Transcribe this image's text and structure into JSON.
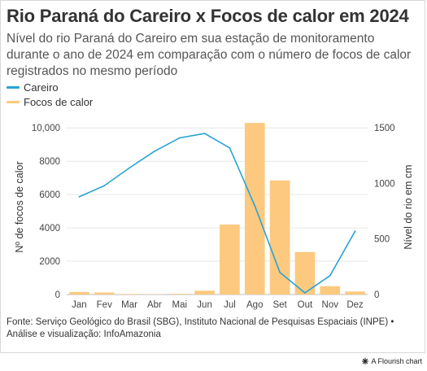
{
  "title": "Rio Paraná do Careiro x Focos de calor em 2024",
  "subtitle": "Nível do rio Paraná do Careiro em sua estação de monitoramento durante o ano de 2024 em comparação com o número de focos de calor registrados no mesmo período",
  "legend": [
    {
      "label": "Careiro",
      "color": "#29a3d6",
      "shape": "line"
    },
    {
      "label": "Focos de calor",
      "color": "#fcc97f",
      "shape": "bar"
    }
  ],
  "source": "Fonte: Serviço Geológico do Brasil (SBG), Instituto Nacional de Pesquisas Espaciais (INPE) • Análise e visualização: InfoAmazonia",
  "credit": "A Flourish chart",
  "chart_data": {
    "type": "bar+line",
    "categories": [
      "Jan",
      "Fev",
      "Mar",
      "Abr",
      "Mai",
      "Jun",
      "Jul",
      "Ago",
      "Set",
      "Out",
      "Nov",
      "Dez"
    ],
    "series": [
      {
        "name": "Focos de calor",
        "type": "bar",
        "axis": "left",
        "values": [
          150,
          120,
          30,
          20,
          40,
          230,
          4200,
          10300,
          6850,
          2550,
          500,
          180
        ]
      },
      {
        "name": "Careiro",
        "type": "line",
        "axis": "right",
        "values": [
          880,
          980,
          1140,
          1290,
          1410,
          1450,
          1320,
          800,
          200,
          15,
          170,
          570
        ]
      }
    ],
    "ylabel_left": "Nº de focos de calor",
    "ylabel_right": "Nível do rio em cm",
    "ylim_left": [
      0,
      10500
    ],
    "yticks_left": [
      "0",
      "2000",
      "4000",
      "6000",
      "8000",
      "10,000"
    ],
    "yticks_left_values": [
      0,
      2000,
      4000,
      6000,
      8000,
      10000
    ],
    "ylim_right": [
      0,
      1575
    ],
    "yticks_right": [
      "0",
      "500",
      "1000",
      "1500"
    ],
    "yticks_right_values": [
      0,
      500,
      1000,
      1500
    ],
    "grid": true,
    "legend_position": "top-left"
  }
}
